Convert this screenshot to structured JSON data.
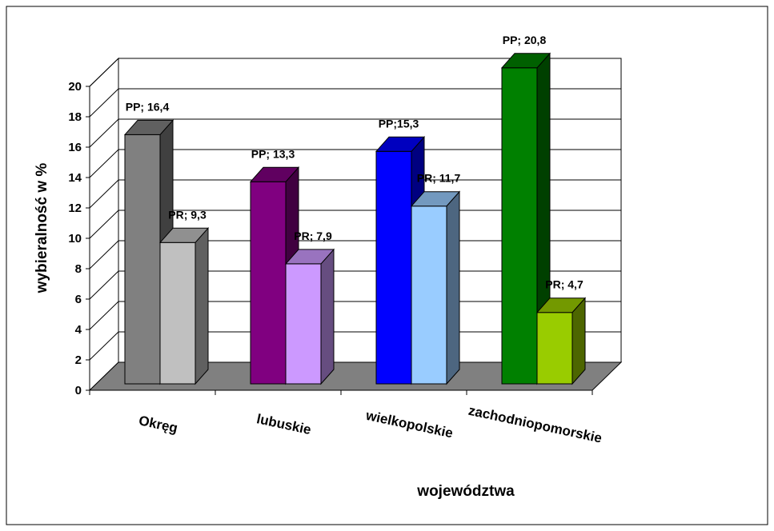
{
  "chart_data": {
    "type": "bar",
    "style": "3d-clustered-column",
    "xlabel": "województwa",
    "ylabel": "wybieralność w %",
    "ylim": [
      0,
      20
    ],
    "yticks": [
      "0",
      "2",
      "4",
      "6",
      "8",
      "10",
      "12",
      "14",
      "16",
      "18",
      "20"
    ],
    "grid": true,
    "categories": [
      "Okręg",
      "lubuskie",
      "wielkopolskie",
      "zachodniopomorskie"
    ],
    "series": [
      {
        "name": "PP",
        "values": [
          16.4,
          13.3,
          15.3,
          20.8
        ]
      },
      {
        "name": "PR",
        "values": [
          9.3,
          7.9,
          11.7,
          4.7
        ]
      }
    ],
    "data_labels": [
      [
        "PP; 16,4",
        "PR; 9,3"
      ],
      [
        "PP; 13,3",
        "PR; 7,9"
      ],
      [
        "PP;15,3",
        "PR; 11,7"
      ],
      [
        "PP; 20,8",
        "PR; 4,7"
      ]
    ],
    "bar_colors": [
      [
        "#808080",
        "#c0c0c0"
      ],
      [
        "#800080",
        "#cc99ff"
      ],
      [
        "#0000ff",
        "#99ccff"
      ],
      [
        "#008000",
        "#99cc00"
      ]
    ],
    "floor_color": "#808080",
    "background": "#ffffff"
  }
}
